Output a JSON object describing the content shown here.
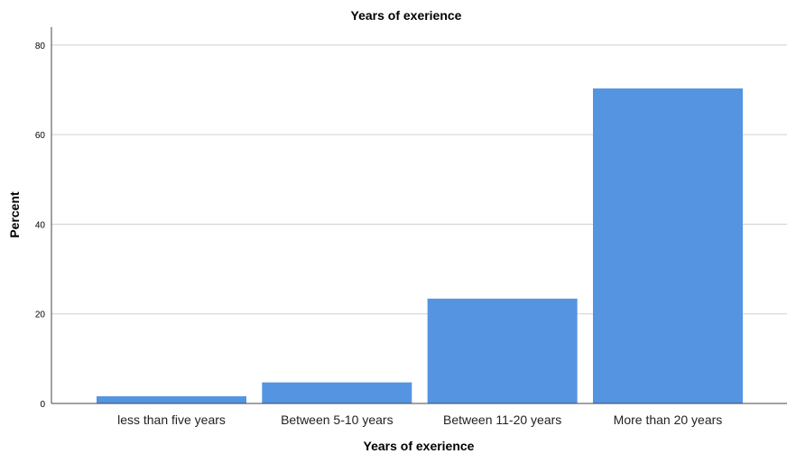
{
  "chart_data": {
    "type": "bar",
    "title": "Years of exerience",
    "xlabel": "Years of exerience",
    "ylabel": "Percent",
    "categories": [
      "less than five years",
      "Between 5-10 years",
      "Between 11-20 years",
      "More than 20 years"
    ],
    "values": [
      1.6,
      4.7,
      23.4,
      70.3
    ],
    "ylim": [
      0,
      84
    ],
    "yticks": [
      0,
      20,
      40,
      60,
      80
    ],
    "grid": true,
    "bar_color": "#5594e1",
    "legend": "none"
  }
}
